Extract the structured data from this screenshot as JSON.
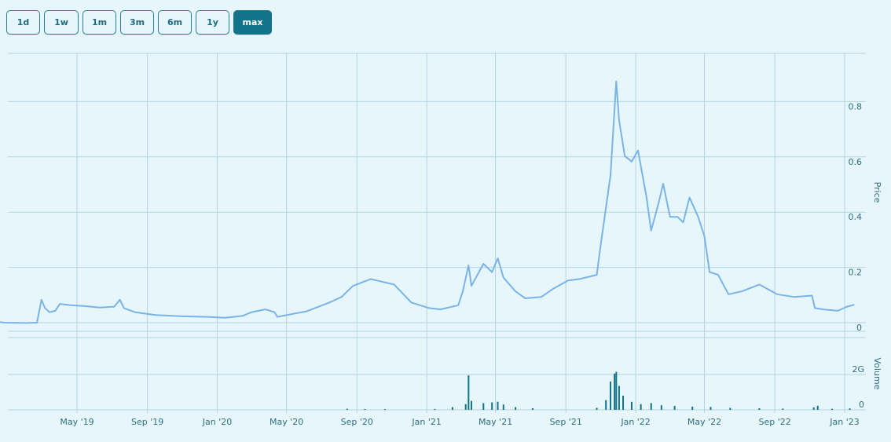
{
  "range_buttons": [
    {
      "label": "1d",
      "active": false
    },
    {
      "label": "1w",
      "active": false
    },
    {
      "label": "1m",
      "active": false
    },
    {
      "label": "3m",
      "active": false
    },
    {
      "label": "6m",
      "active": false
    },
    {
      "label": "1y",
      "active": false
    },
    {
      "label": "max",
      "active": true
    }
  ],
  "colors": {
    "background": "#e6f6fb",
    "grid": "#b6d3de",
    "price_line": "#7ab4e6",
    "volume_bars": "#12738a",
    "button_active": "#12738a",
    "button_border": "#2a7f93"
  },
  "chart_data": [
    {
      "type": "line",
      "xlabel": "",
      "ylabel": "Price",
      "ylim": [
        0,
        1.0
      ],
      "y_ticks": [
        "0",
        "0.2",
        "0.4",
        "0.6",
        "0.8"
      ],
      "x_tick_labels": [
        "May '19",
        "Sep '19",
        "Jan '20",
        "May '20",
        "Sep '20",
        "Jan '21",
        "May '21",
        "Sep '21",
        "Jan '22",
        "May '22",
        "Sep '22",
        "Jan '23"
      ],
      "xlim": [
        "2018-12-08",
        "2023-01-18"
      ],
      "grid": true,
      "legend": "none",
      "series": [
        {
          "points": [
            [
              "2018-12-08",
              0.022
            ],
            [
              "2018-12-25",
              0.017
            ],
            [
              "2019-02-01",
              0.016
            ],
            [
              "2019-02-20",
              0.017
            ],
            [
              "2019-02-28",
              0.1
            ],
            [
              "2019-03-06",
              0.07
            ],
            [
              "2019-03-14",
              0.055
            ],
            [
              "2019-03-24",
              0.06
            ],
            [
              "2019-04-01",
              0.085
            ],
            [
              "2019-04-20",
              0.08
            ],
            [
              "2019-05-15",
              0.077
            ],
            [
              "2019-06-10",
              0.072
            ],
            [
              "2019-07-05",
              0.075
            ],
            [
              "2019-07-15",
              0.1
            ],
            [
              "2019-07-22",
              0.07
            ],
            [
              "2019-08-10",
              0.055
            ],
            [
              "2019-09-15",
              0.045
            ],
            [
              "2019-11-01",
              0.04
            ],
            [
              "2019-12-15",
              0.038
            ],
            [
              "2020-01-15",
              0.035
            ],
            [
              "2020-02-15",
              0.042
            ],
            [
              "2020-03-01",
              0.055
            ],
            [
              "2020-03-25",
              0.065
            ],
            [
              "2020-04-10",
              0.055
            ],
            [
              "2020-04-15",
              0.038
            ],
            [
              "2020-05-15",
              0.05
            ],
            [
              "2020-06-05",
              0.058
            ],
            [
              "2020-07-15",
              0.09
            ],
            [
              "2020-08-05",
              0.11
            ],
            [
              "2020-08-25",
              0.15
            ],
            [
              "2020-09-25",
              0.175
            ],
            [
              "2020-10-05",
              0.17
            ],
            [
              "2020-11-05",
              0.155
            ],
            [
              "2020-12-05",
              0.09
            ],
            [
              "2021-01-05",
              0.07
            ],
            [
              "2021-01-25",
              0.065
            ],
            [
              "2021-02-25",
              0.08
            ],
            [
              "2021-03-05",
              0.13
            ],
            [
              "2021-03-15",
              0.225
            ],
            [
              "2021-03-20",
              0.15
            ],
            [
              "2021-04-10",
              0.23
            ],
            [
              "2021-04-25",
              0.2
            ],
            [
              "2021-05-05",
              0.25
            ],
            [
              "2021-05-15",
              0.18
            ],
            [
              "2021-06-05",
              0.13
            ],
            [
              "2021-06-22",
              0.105
            ],
            [
              "2021-07-20",
              0.11
            ],
            [
              "2021-08-10",
              0.14
            ],
            [
              "2021-09-05",
              0.17
            ],
            [
              "2021-09-25",
              0.175
            ],
            [
              "2021-10-25",
              0.19
            ],
            [
              "2021-11-01",
              0.3
            ],
            [
              "2021-11-18",
              0.55
            ],
            [
              "2021-11-28",
              0.89
            ],
            [
              "2021-12-03",
              0.75
            ],
            [
              "2021-12-13",
              0.62
            ],
            [
              "2021-12-25",
              0.6
            ],
            [
              "2022-01-05",
              0.64
            ],
            [
              "2022-01-20",
              0.47
            ],
            [
              "2022-01-28",
              0.35
            ],
            [
              "2022-02-10",
              0.45
            ],
            [
              "2022-02-18",
              0.52
            ],
            [
              "2022-03-02",
              0.4
            ],
            [
              "2022-03-15",
              0.4
            ],
            [
              "2022-03-25",
              0.38
            ],
            [
              "2022-04-05",
              0.47
            ],
            [
              "2022-04-20",
              0.4
            ],
            [
              "2022-05-01",
              0.33
            ],
            [
              "2022-05-10",
              0.2
            ],
            [
              "2022-05-25",
              0.19
            ],
            [
              "2022-06-12",
              0.12
            ],
            [
              "2022-07-05",
              0.13
            ],
            [
              "2022-08-05",
              0.155
            ],
            [
              "2022-09-05",
              0.12
            ],
            [
              "2022-10-05",
              0.11
            ],
            [
              "2022-11-05",
              0.115
            ],
            [
              "2022-11-10",
              0.07
            ],
            [
              "2022-11-25",
              0.065
            ],
            [
              "2022-12-20",
              0.06
            ],
            [
              "2023-01-05",
              0.075
            ],
            [
              "2023-01-18",
              0.082
            ]
          ]
        }
      ]
    },
    {
      "type": "bar",
      "xlabel": "",
      "ylabel": "Volume",
      "ylim": [
        0,
        2500000000
      ],
      "y_ticks": [
        "0",
        "2G"
      ],
      "grid": true,
      "legend": "none",
      "series": [
        {
          "points": [
            [
              "2020-08-15",
              60000000
            ],
            [
              "2020-09-15",
              45000000
            ],
            [
              "2020-10-20",
              40000000
            ],
            [
              "2021-01-15",
              50000000
            ],
            [
              "2021-02-15",
              150000000
            ],
            [
              "2021-03-10",
              320000000
            ],
            [
              "2021-03-15",
              1950000000
            ],
            [
              "2021-03-20",
              500000000
            ],
            [
              "2021-04-10",
              380000000
            ],
            [
              "2021-04-25",
              420000000
            ],
            [
              "2021-05-05",
              460000000
            ],
            [
              "2021-05-15",
              300000000
            ],
            [
              "2021-06-05",
              150000000
            ],
            [
              "2021-07-05",
              90000000
            ],
            [
              "2021-10-25",
              110000000
            ],
            [
              "2021-11-10",
              550000000
            ],
            [
              "2021-11-18",
              1600000000
            ],
            [
              "2021-11-25",
              2050000000
            ],
            [
              "2021-11-28",
              2150000000
            ],
            [
              "2021-12-03",
              1350000000
            ],
            [
              "2021-12-10",
              800000000
            ],
            [
              "2021-12-25",
              450000000
            ],
            [
              "2022-01-10",
              320000000
            ],
            [
              "2022-01-28",
              380000000
            ],
            [
              "2022-02-15",
              260000000
            ],
            [
              "2022-03-10",
              220000000
            ],
            [
              "2022-04-10",
              180000000
            ],
            [
              "2022-05-12",
              160000000
            ],
            [
              "2022-06-15",
              110000000
            ],
            [
              "2022-08-05",
              90000000
            ],
            [
              "2022-09-15",
              70000000
            ],
            [
              "2022-11-08",
              140000000
            ],
            [
              "2022-11-15",
              230000000
            ],
            [
              "2022-12-10",
              60000000
            ],
            [
              "2023-01-10",
              80000000
            ]
          ]
        }
      ]
    }
  ]
}
